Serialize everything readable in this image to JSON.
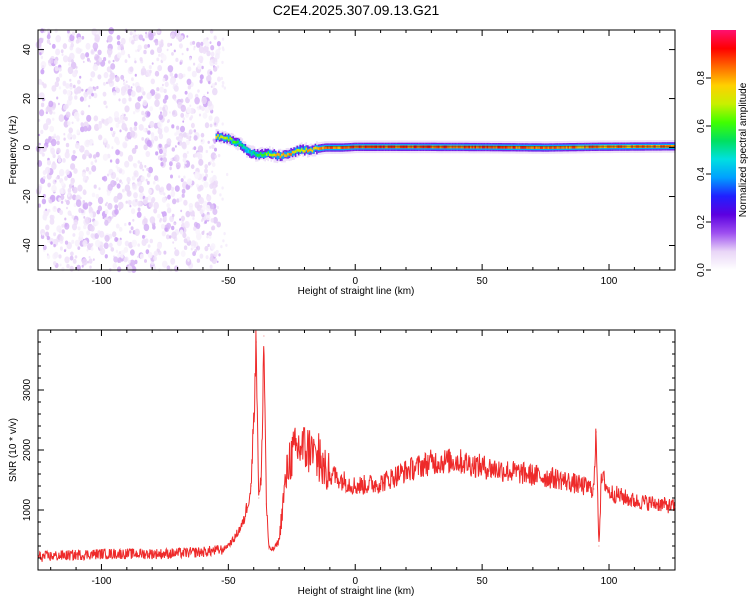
{
  "figure_title": "C2E4.2025.307.09.13.G21",
  "colors": {
    "snr_line": "#ee2a2a",
    "colormap": [
      "#ffffff",
      "#e9d6f7",
      "#9e4ff0",
      "#5c00e0",
      "#2020ff",
      "#00a0ff",
      "#00e0e0",
      "#00e060",
      "#40ff00",
      "#c8f000",
      "#ffd000",
      "#ff6a00",
      "#ff0000",
      "#ff1070"
    ]
  },
  "chart_data": [
    {
      "type": "heatmap",
      "xlabel": "Height of straight line (km)",
      "ylabel": "Frequency (Hz)",
      "xlim": [
        -125,
        126
      ],
      "ylim": [
        -50,
        48
      ],
      "xticks": [
        -100,
        -50,
        0,
        50,
        100
      ],
      "yticks": [
        -40,
        -20,
        0,
        20,
        40
      ],
      "colorbar": {
        "label": "Normalized spectral amplitude",
        "range": [
          0,
          1
        ],
        "ticks": [
          0.0,
          0.2,
          0.4,
          0.6,
          0.8
        ]
      },
      "noise_region_x": [
        -125,
        -55
      ],
      "signal_track": [
        {
          "x": -55,
          "freq": 4.5,
          "amp": 0.75
        },
        {
          "x": -50,
          "freq": 3.5,
          "amp": 0.7
        },
        {
          "x": -45,
          "freq": 1.0,
          "amp": 0.55
        },
        {
          "x": -42,
          "freq": -2.0,
          "amp": 0.5
        },
        {
          "x": -38,
          "freq": -3.0,
          "amp": 0.6
        },
        {
          "x": -34,
          "freq": -2.5,
          "amp": 0.7
        },
        {
          "x": -30,
          "freq": -3.5,
          "amp": 0.85
        },
        {
          "x": -26,
          "freq": -2.5,
          "amp": 0.8
        },
        {
          "x": -22,
          "freq": -1.0,
          "amp": 0.75
        },
        {
          "x": -18,
          "freq": -1.0,
          "amp": 0.8
        },
        {
          "x": -12,
          "freq": 0.0,
          "amp": 0.85
        },
        {
          "x": -5,
          "freq": 0.0,
          "amp": 0.85
        },
        {
          "x": 0,
          "freq": 0.3,
          "amp": 0.9
        },
        {
          "x": 20,
          "freq": 0.3,
          "amp": 0.9
        },
        {
          "x": 50,
          "freq": 0.2,
          "amp": 0.9
        },
        {
          "x": 75,
          "freq": 0.0,
          "amp": 0.85
        },
        {
          "x": 95,
          "freq": 0.3,
          "amp": 0.85
        },
        {
          "x": 126,
          "freq": 0.5,
          "amp": 0.85
        }
      ]
    },
    {
      "type": "line",
      "xlabel": "Height of straight line (km)",
      "ylabel": "SNR (10 * v/v)",
      "xlim": [
        -125,
        126
      ],
      "ylim": [
        0,
        4000
      ],
      "xticks": [
        -100,
        -50,
        0,
        50,
        100
      ],
      "yticks": [
        1000,
        2000,
        3000
      ],
      "series": [
        {
          "x": [
            -125,
            -100,
            -75,
            -60,
            -52,
            -48,
            -44,
            -41,
            -39,
            -38,
            -37,
            -36,
            -35,
            -34,
            -32,
            -30,
            -28,
            -26,
            -22,
            -18,
            -12,
            -5,
            0,
            10,
            20,
            30,
            40,
            50,
            60,
            70,
            80,
            88,
            94,
            95,
            96,
            97,
            98,
            100,
            110,
            120,
            126
          ],
          "y": [
            220,
            270,
            270,
            300,
            340,
            500,
            800,
            1400,
            3800,
            1200,
            1500,
            3900,
            1100,
            350,
            350,
            500,
            1300,
            1850,
            2050,
            2000,
            1650,
            1500,
            1400,
            1450,
            1650,
            1800,
            1820,
            1720,
            1650,
            1580,
            1520,
            1420,
            1350,
            2300,
            400,
            1500,
            1500,
            1300,
            1150,
            1100,
            1050
          ]
        }
      ]
    }
  ]
}
